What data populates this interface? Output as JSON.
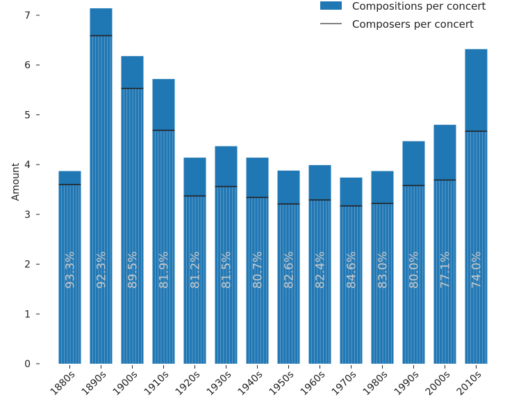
{
  "chart_data": {
    "type": "bar",
    "title": "",
    "xlabel": "",
    "ylabel": "Amount",
    "ylim": [
      0,
      7
    ],
    "yticks": [
      0,
      1,
      2,
      3,
      4,
      5,
      6,
      7
    ],
    "grid": false,
    "legend_position": "top-right",
    "categories": [
      "1880s",
      "1890s",
      "1900s",
      "1910s",
      "1920s",
      "1930s",
      "1940s",
      "1950s",
      "1960s",
      "1970s",
      "1980s",
      "1990s",
      "2000s",
      "2010s"
    ],
    "series": [
      {
        "name": "Compositions per concert",
        "kind": "bar",
        "color": "#1f77b4",
        "values": [
          3.87,
          7.14,
          6.18,
          5.72,
          4.14,
          4.37,
          4.14,
          3.88,
          3.99,
          3.74,
          3.87,
          4.47,
          4.8,
          6.32
        ]
      },
      {
        "name": "Composers per concert",
        "kind": "line-marker",
        "color": "#222222",
        "values": [
          3.6,
          6.59,
          5.53,
          4.69,
          3.37,
          3.56,
          3.34,
          3.21,
          3.29,
          3.17,
          3.22,
          3.58,
          3.69,
          4.67
        ]
      }
    ],
    "bar_labels": [
      "93.3%",
      "92.3%",
      "89.5%",
      "81.9%",
      "81.2%",
      "81.5%",
      "80.7%",
      "82.6%",
      "82.4%",
      "84.6%",
      "83.0%",
      "80.0%",
      "77.1%",
      "74.0%"
    ]
  }
}
